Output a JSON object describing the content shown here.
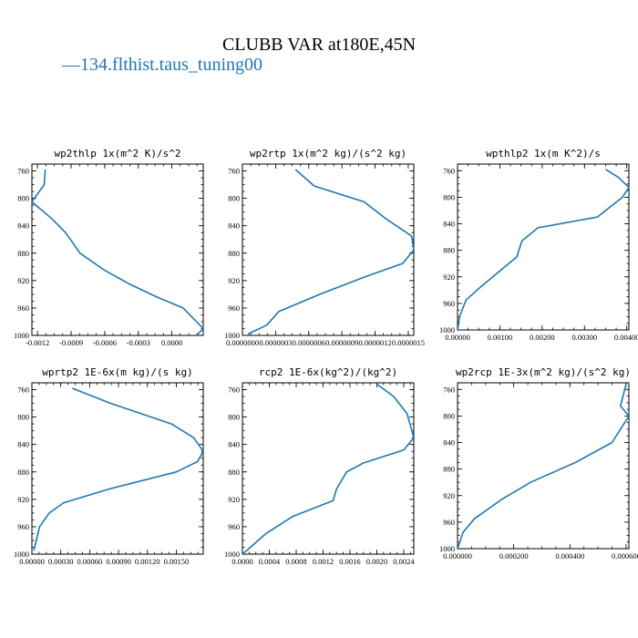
{
  "figure": {
    "title": "CLUBB VAR at180E,45N",
    "legend": {
      "label": "134.flthist.taus_tuning00",
      "line_symbol": "—",
      "color": "#1f77b4"
    }
  },
  "chart_data": [
    {
      "type": "line",
      "title": "wp2thlp  1x(m^2 K)/s^2",
      "xlim": [
        -0.00125,
        0.00028
      ],
      "ylim": [
        1000,
        750
      ],
      "xticks": [
        -0.0012,
        -0.0009,
        -0.0006,
        -0.0003,
        0.0
      ],
      "xtick_labels": [
        "-0.0012",
        "-0.0009",
        "-0.0006",
        "-0.0003",
        "0.0000"
      ],
      "yticks": [
        760,
        800,
        840,
        880,
        920,
        960,
        1000
      ],
      "ytick_labels": [
        "760",
        "800",
        "840",
        "880",
        "920",
        "960",
        "1000"
      ],
      "series": [
        {
          "x": [
            -0.00113,
            -0.00114,
            -0.00125,
            -0.00107,
            -0.00095,
            -0.00082,
            -0.0006,
            -0.00038,
            -0.00012,
            0.0001,
            0.00028,
            0.00022
          ],
          "y": [
            758,
            780,
            805,
            830,
            850,
            880,
            905,
            925,
            945,
            960,
            990,
            1000
          ],
          "color": "#1f77b4"
        }
      ]
    },
    {
      "type": "line",
      "title": "wp2rtp  1x(m^2 kg)/(s^2 kg)",
      "xlim": [
        0.0,
        1.55e-06
      ],
      "ylim": [
        1000,
        750
      ],
      "xticks": [
        0.0,
        3e-07,
        6e-07,
        9e-07,
        1.2e-06,
        1.5e-06
      ],
      "xtick_labels": [
        "0.0000000",
        "0.0000003",
        "0.0000006",
        "0.0000009",
        "0.0000012",
        "0.0000015"
      ],
      "yticks": [
        760,
        800,
        840,
        880,
        920,
        960,
        1000
      ],
      "ytick_labels": [
        "760",
        "800",
        "840",
        "880",
        "920",
        "960",
        "1000"
      ],
      "series": [
        {
          "x": [
            4.8e-07,
            6.5e-07,
            1.1e-06,
            1.3e-06,
            1.53e-06,
            1.55e-06,
            1.45e-06,
            1.1e-06,
            7e-07,
            3.3e-07,
            2.2e-07,
            5e-08
          ],
          "y": [
            758,
            782,
            805,
            830,
            855,
            875,
            895,
            915,
            940,
            965,
            985,
            998
          ],
          "color": "#1f77b4"
        }
      ]
    },
    {
      "type": "line",
      "title": "wpthlp2  1x(m K^2)/s",
      "xlim": [
        0.0,
        0.00405
      ],
      "ylim": [
        1000,
        750
      ],
      "xticks": [
        0.0,
        0.001,
        0.002,
        0.003,
        0.004
      ],
      "xtick_labels": [
        "0.00000",
        "0.00100",
        "0.00200",
        "0.00300",
        "0.00400"
      ],
      "yticks": [
        760,
        800,
        840,
        880,
        920,
        960,
        1000
      ],
      "ytick_labels": [
        "760",
        "800",
        "840",
        "880",
        "920",
        "960",
        "1000"
      ],
      "series": [
        {
          "x": [
            0.0035,
            0.0038,
            0.00405,
            0.0039,
            0.0033,
            0.0019,
            0.00152,
            0.0014,
            0.00102,
            0.00055,
            0.0002,
            5e-05,
            0.0
          ],
          "y": [
            758,
            770,
            785,
            800,
            830,
            846,
            866,
            890,
            910,
            935,
            955,
            980,
            1000
          ],
          "color": "#1f77b4"
        }
      ]
    },
    {
      "type": "line",
      "title": "wprtp2  1E-6x(m kg)/(s kg)",
      "xlim": [
        0.0,
        0.00178
      ],
      "ylim": [
        1000,
        750
      ],
      "xticks": [
        0.0,
        0.0003,
        0.0006,
        0.0009,
        0.0012,
        0.0015
      ],
      "xtick_labels": [
        "0.00000",
        "0.00030",
        "0.00060",
        "0.00090",
        "0.00120",
        "0.00150"
      ],
      "yticks": [
        760,
        800,
        840,
        880,
        920,
        960,
        1000
      ],
      "ytick_labels": [
        "760",
        "800",
        "840",
        "880",
        "920",
        "960",
        "1000"
      ],
      "series": [
        {
          "x": [
            0.00042,
            0.00082,
            0.00145,
            0.00168,
            0.00178,
            0.00172,
            0.0015,
            0.0008,
            0.00033,
            0.00018,
            8e-05,
            2e-05
          ],
          "y": [
            758,
            780,
            810,
            830,
            850,
            865,
            880,
            905,
            925,
            940,
            960,
            995
          ],
          "color": "#1f77b4"
        }
      ]
    },
    {
      "type": "line",
      "title": "rcp2  1E-6x(kg^2)/(kg^2)",
      "xlim": [
        0.0,
        0.00255
      ],
      "ylim": [
        1000,
        750
      ],
      "xticks": [
        0.0,
        0.0004,
        0.0008,
        0.0012,
        0.0016,
        0.002,
        0.0024
      ],
      "xtick_labels": [
        "0.0000",
        "0.0004",
        "0.0008",
        "0.0012",
        "0.0016",
        "0.0020",
        "0.0024"
      ],
      "yticks": [
        760,
        800,
        840,
        880,
        920,
        960,
        1000
      ],
      "ytick_labels": [
        "760",
        "800",
        "840",
        "880",
        "920",
        "960",
        "1000"
      ],
      "series": [
        {
          "x": [
            0.002,
            0.00225,
            0.00245,
            0.00255,
            0.0024,
            0.0018,
            0.00155,
            0.0014,
            0.00135,
            0.00075,
            0.00035,
            0.00012,
            0.0
          ],
          "y": [
            752,
            770,
            795,
            830,
            848,
            867,
            880,
            905,
            922,
            945,
            970,
            990,
            1000
          ],
          "color": "#1f77b4"
        }
      ]
    },
    {
      "type": "line",
      "title": "wp2rcp  1E-3x(m^2 kg)/(s^2 kg)",
      "xlim": [
        0.0,
        0.00061
      ],
      "ylim": [
        1000,
        750
      ],
      "xticks": [
        0.0,
        0.0002,
        0.0004,
        0.0006
      ],
      "xtick_labels": [
        "0.000000",
        "0.000200",
        "0.000400",
        "0.000600"
      ],
      "yticks": [
        760,
        800,
        840,
        880,
        920,
        960,
        1000
      ],
      "ytick_labels": [
        "760",
        "800",
        "840",
        "880",
        "920",
        "960",
        "1000"
      ],
      "series": [
        {
          "x": [
            0.0006,
            0.00058,
            0.00061,
            0.00055,
            0.00042,
            0.00026,
            0.00016,
            6e-05,
            2e-05,
            0.0
          ],
          "y": [
            752,
            785,
            800,
            840,
            870,
            900,
            925,
            955,
            975,
            1000
          ],
          "color": "#1f77b4"
        }
      ]
    }
  ]
}
